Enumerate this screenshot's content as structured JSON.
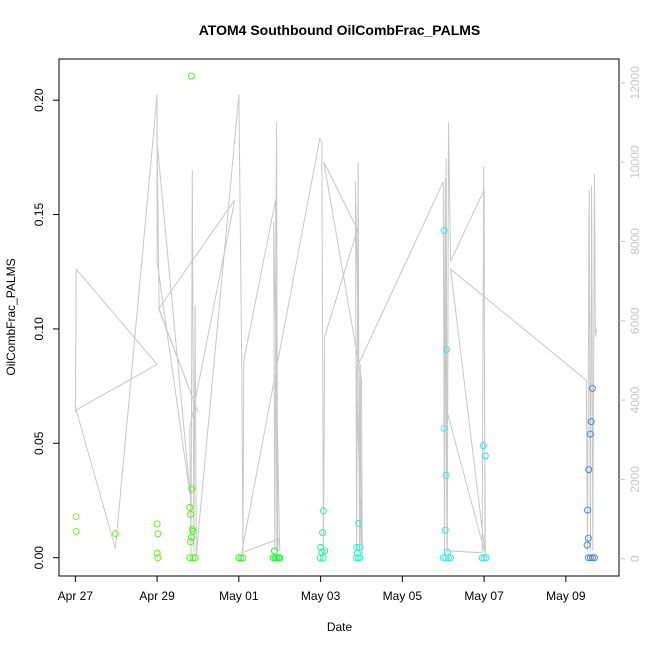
{
  "chart_data": {
    "type": "scatter",
    "title": "ATOM4 Southbound OilCombFrac_PALMS",
    "xlabel": "Date",
    "ylabel": "OilCombFrac_PALMS",
    "x_tick_labels": [
      "Apr 27",
      "Apr 29",
      "May 01",
      "May 03",
      "May 05",
      "May 07",
      "May 09"
    ],
    "x_tick_days": [
      27,
      29,
      31,
      33,
      35,
      37,
      39
    ],
    "xlim_days": [
      26.6,
      40.3
    ],
    "ylim": [
      -0.008,
      0.218
    ],
    "y_ticks": [
      0.0,
      0.05,
      0.1,
      0.15,
      0.2
    ],
    "y_tick_labels": [
      "0.00",
      "0.05",
      "0.10",
      "0.15",
      "0.20"
    ],
    "y2lim": [
      -436,
      12600
    ],
    "y2_ticks": [
      0,
      2000,
      4000,
      6000,
      8000,
      10000,
      12000
    ],
    "y2_tick_labels": [
      "0",
      "2000",
      "4000",
      "6000",
      "8000",
      "10000",
      "12000"
    ],
    "line_color": "#c8c8c8",
    "points": [
      {
        "x": 27.02,
        "y": 0.018,
        "c": "#7fee2a"
      },
      {
        "x": 27.02,
        "y": 0.0115,
        "c": "#7fee2a"
      },
      {
        "x": 27.98,
        "y": 0.0105,
        "c": "#7fee2a"
      },
      {
        "x": 29.0,
        "y": 0.0148,
        "c": "#6cf028"
      },
      {
        "x": 29.02,
        "y": 0.0105,
        "c": "#6cf028"
      },
      {
        "x": 29.0,
        "y": 0.002,
        "c": "#6cf028"
      },
      {
        "x": 29.02,
        "y": 0.0,
        "c": "#6cf028"
      },
      {
        "x": 29.84,
        "y": 0.2105,
        "c": "#55f225"
      },
      {
        "x": 29.85,
        "y": 0.03,
        "c": "#55f225"
      },
      {
        "x": 29.8,
        "y": 0.022,
        "c": "#55f225"
      },
      {
        "x": 29.82,
        "y": 0.019,
        "c": "#55f225"
      },
      {
        "x": 29.86,
        "y": 0.0125,
        "c": "#55f225"
      },
      {
        "x": 29.88,
        "y": 0.0115,
        "c": "#55f225"
      },
      {
        "x": 29.84,
        "y": 0.009,
        "c": "#55f225"
      },
      {
        "x": 29.82,
        "y": 0.007,
        "c": "#55f225"
      },
      {
        "x": 29.8,
        "y": 0.0,
        "c": "#55f225"
      },
      {
        "x": 29.88,
        "y": 0.0,
        "c": "#55f225"
      },
      {
        "x": 29.93,
        "y": 0.0,
        "c": "#55f225"
      },
      {
        "x": 31.0,
        "y": 0.0,
        "c": "#3ef530"
      },
      {
        "x": 31.05,
        "y": 0.0,
        "c": "#3ef530"
      },
      {
        "x": 31.1,
        "y": 0.0,
        "c": "#3ef530"
      },
      {
        "x": 31.87,
        "y": 0.003,
        "c": "#1ff73a"
      },
      {
        "x": 31.84,
        "y": 0.0,
        "c": "#1ff73a"
      },
      {
        "x": 31.89,
        "y": 0.0,
        "c": "#1ff73a"
      },
      {
        "x": 31.93,
        "y": 0.0,
        "c": "#1ff73a"
      },
      {
        "x": 31.97,
        "y": 0.0,
        "c": "#1ff73a"
      },
      {
        "x": 32.0,
        "y": 0.0,
        "c": "#1ff73a"
      },
      {
        "x": 33.0,
        "y": 0.0045,
        "c": "#25f5a0"
      },
      {
        "x": 33.05,
        "y": 0.011,
        "c": "#25f5a0"
      },
      {
        "x": 33.07,
        "y": 0.0205,
        "c": "#25f5a0"
      },
      {
        "x": 33.03,
        "y": 0.0025,
        "c": "#25f5a0"
      },
      {
        "x": 33.1,
        "y": 0.003,
        "c": "#25f5a0"
      },
      {
        "x": 32.99,
        "y": 0.0,
        "c": "#25f5a0"
      },
      {
        "x": 33.06,
        "y": 0.0,
        "c": "#25f5a0"
      },
      {
        "x": 33.88,
        "y": 0.0045,
        "c": "#2ef5c8"
      },
      {
        "x": 33.93,
        "y": 0.015,
        "c": "#2ef5c8"
      },
      {
        "x": 33.95,
        "y": 0.0045,
        "c": "#2ef5c8"
      },
      {
        "x": 33.9,
        "y": 0.002,
        "c": "#2ef5c8"
      },
      {
        "x": 33.87,
        "y": 0.0,
        "c": "#2ef5c8"
      },
      {
        "x": 33.92,
        "y": 0.0,
        "c": "#2ef5c8"
      },
      {
        "x": 33.96,
        "y": 0.0,
        "c": "#2ef5c8"
      },
      {
        "x": 36.02,
        "y": 0.143,
        "c": "#3ee9ef"
      },
      {
        "x": 36.08,
        "y": 0.091,
        "c": "#3ee9ef"
      },
      {
        "x": 36.02,
        "y": 0.0565,
        "c": "#3ee9ef"
      },
      {
        "x": 36.07,
        "y": 0.036,
        "c": "#3ee9ef"
      },
      {
        "x": 36.05,
        "y": 0.012,
        "c": "#3ee9ef"
      },
      {
        "x": 36.1,
        "y": 0.0025,
        "c": "#3ee9ef"
      },
      {
        "x": 36.0,
        "y": 0.0,
        "c": "#3ee9ef"
      },
      {
        "x": 36.06,
        "y": 0.0,
        "c": "#3ee9ef"
      },
      {
        "x": 36.13,
        "y": 0.0,
        "c": "#3ee9ef"
      },
      {
        "x": 36.18,
        "y": 0.0,
        "c": "#3ee9ef"
      },
      {
        "x": 36.98,
        "y": 0.049,
        "c": "#3ee2f2"
      },
      {
        "x": 37.03,
        "y": 0.0445,
        "c": "#3ee2f2"
      },
      {
        "x": 36.95,
        "y": 0.0,
        "c": "#3ee2f2"
      },
      {
        "x": 37.0,
        "y": 0.0,
        "c": "#3ee2f2"
      },
      {
        "x": 37.05,
        "y": 0.0,
        "c": "#3ee2f2"
      },
      {
        "x": 39.65,
        "y": 0.074,
        "c": "#3a8cf0"
      },
      {
        "x": 39.62,
        "y": 0.0595,
        "c": "#3a8cf0"
      },
      {
        "x": 39.6,
        "y": 0.054,
        "c": "#3a8cf0"
      },
      {
        "x": 39.56,
        "y": 0.0385,
        "c": "#3a8cf0"
      },
      {
        "x": 39.53,
        "y": 0.0208,
        "c": "#3a8cf0"
      },
      {
        "x": 39.55,
        "y": 0.0085,
        "c": "#3a8cf0"
      },
      {
        "x": 39.52,
        "y": 0.0055,
        "c": "#3a8cf0"
      },
      {
        "x": 39.55,
        "y": 0.0,
        "c": "#3a8cf0"
      },
      {
        "x": 39.6,
        "y": 0.0,
        "c": "#3a8cf0"
      },
      {
        "x": 39.65,
        "y": 0.0,
        "c": "#3a8cf0"
      },
      {
        "x": 39.7,
        "y": 0.0,
        "c": "#3a8cf0"
      }
    ],
    "line_y2": [
      [
        27.0,
        3700
      ],
      [
        27.02,
        7300
      ],
      [
        29.0,
        4900
      ],
      [
        27.02,
        3750
      ],
      [
        27.98,
        250
      ],
      [
        29.0,
        11700
      ],
      [
        29.0,
        7500
      ],
      [
        29.82,
        1500
      ],
      [
        29.0,
        10500
      ],
      [
        29.05,
        6300
      ],
      [
        30.0,
        3700
      ],
      [
        29.04,
        6300
      ],
      [
        30.9,
        9050
      ],
      [
        29.8,
        3300
      ],
      [
        29.83,
        100
      ],
      [
        29.86,
        9800
      ],
      [
        29.9,
        150
      ],
      [
        29.93,
        6400
      ],
      [
        29.96,
        100
      ],
      [
        31.0,
        11700
      ],
      [
        31.07,
        5000
      ],
      [
        31.1,
        200
      ],
      [
        31.12,
        5000
      ],
      [
        31.9,
        9050
      ],
      [
        31.93,
        200
      ],
      [
        32.0,
        200
      ],
      [
        31.85,
        8500
      ],
      [
        31.88,
        200
      ],
      [
        31.92,
        11000
      ],
      [
        31.95,
        200
      ],
      [
        31.97,
        500
      ],
      [
        31.07,
        150
      ],
      [
        32.98,
        10600
      ],
      [
        33.03,
        10500
      ],
      [
        33.07,
        100
      ],
      [
        33.1,
        5600
      ],
      [
        33.9,
        8300
      ],
      [
        33.08,
        10000
      ],
      [
        34.0,
        4500
      ],
      [
        34.02,
        100
      ],
      [
        33.85,
        9500
      ],
      [
        33.88,
        200
      ],
      [
        33.92,
        10000
      ],
      [
        33.95,
        200
      ],
      [
        33.97,
        4900
      ],
      [
        33.99,
        200
      ],
      [
        33.88,
        4800
      ],
      [
        36.0,
        9500
      ],
      [
        36.03,
        100
      ],
      [
        36.07,
        10100
      ],
      [
        36.1,
        150
      ],
      [
        36.13,
        11000
      ],
      [
        36.18,
        7500
      ],
      [
        37.0,
        9300
      ],
      [
        37.02,
        150
      ],
      [
        36.02,
        4000
      ],
      [
        36.05,
        9600
      ],
      [
        36.09,
        200
      ],
      [
        36.95,
        150
      ],
      [
        36.99,
        9900
      ],
      [
        37.03,
        100
      ],
      [
        36.18,
        7300
      ],
      [
        39.5,
        4500
      ],
      [
        39.53,
        200
      ],
      [
        39.57,
        9300
      ],
      [
        39.6,
        200
      ],
      [
        39.63,
        9400
      ],
      [
        39.66,
        200
      ],
      [
        39.7,
        9700
      ],
      [
        39.72,
        5600
      ],
      [
        39.75,
        5800
      ]
    ]
  }
}
